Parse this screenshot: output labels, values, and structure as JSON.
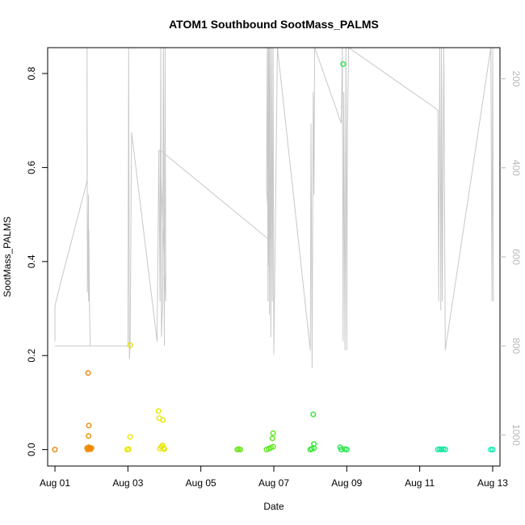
{
  "chart_data": {
    "type": "scatter",
    "title": "ATOM1 Southbound SootMass_PALMS",
    "xlabel": "Date",
    "ylabel": "SootMass_PALMS",
    "xlim": [
      -0.2,
      12.2
    ],
    "ylim": [
      -0.035,
      0.855
    ],
    "x_ticks": [
      {
        "value": 0,
        "label": "Aug 01"
      },
      {
        "value": 2,
        "label": "Aug 03"
      },
      {
        "value": 4,
        "label": "Aug 05"
      },
      {
        "value": 6,
        "label": "Aug 07"
      },
      {
        "value": 8,
        "label": "Aug 09"
      },
      {
        "value": 10,
        "label": "Aug 11"
      },
      {
        "value": 12,
        "label": "Aug 13"
      }
    ],
    "y_ticks": [
      0.0,
      0.2,
      0.4,
      0.6,
      0.8
    ],
    "y_tick_labels": [
      "0.0",
      "0.2",
      "0.4",
      "0.6",
      "0.8"
    ],
    "right_axis": {
      "reversed": true,
      "ylim": [
        1070,
        130
      ],
      "ticks": [
        200,
        400,
        600,
        800,
        1000
      ],
      "tick_labels": [
        "200",
        "400",
        "600",
        "800",
        "1000"
      ],
      "color": "#b8b8b8"
    },
    "colors": {
      "right_series": "#c8c8c8",
      "axis": "#000000"
    },
    "points": [
      {
        "x": 0.0,
        "y": 0.0,
        "color": "#e8860a"
      },
      {
        "x": 0.88,
        "y": 0.003,
        "color": "#f08a00"
      },
      {
        "x": 0.9,
        "y": 0.0,
        "color": "#f08a00"
      },
      {
        "x": 0.92,
        "y": 0.005,
        "color": "#f08a00"
      },
      {
        "x": 0.94,
        "y": 0.002,
        "color": "#f08a00"
      },
      {
        "x": 0.96,
        "y": 0.004,
        "color": "#f08a00"
      },
      {
        "x": 0.98,
        "y": 0.001,
        "color": "#f08a00"
      },
      {
        "x": 1.0,
        "y": 0.003,
        "color": "#f08a00"
      },
      {
        "x": 0.91,
        "y": 0.163,
        "color": "#e8860a"
      },
      {
        "x": 0.93,
        "y": 0.051,
        "color": "#e8900a"
      },
      {
        "x": 0.92,
        "y": 0.029,
        "color": "#e8900a"
      },
      {
        "x": 1.98,
        "y": 0.0,
        "color": "#e6e600"
      },
      {
        "x": 2.02,
        "y": 0.001,
        "color": "#e6e600"
      },
      {
        "x": 2.06,
        "y": 0.222,
        "color": "#e6e600"
      },
      {
        "x": 2.06,
        "y": 0.027,
        "color": "#e6e600"
      },
      {
        "x": 2.84,
        "y": 0.082,
        "color": "#e6e600"
      },
      {
        "x": 2.86,
        "y": 0.067,
        "color": "#e6e600"
      },
      {
        "x": 2.96,
        "y": 0.063,
        "color": "#e6e600"
      },
      {
        "x": 2.88,
        "y": 0.002,
        "color": "#e6e600"
      },
      {
        "x": 2.92,
        "y": 0.006,
        "color": "#e6e600"
      },
      {
        "x": 2.95,
        "y": 0.009,
        "color": "#e6e600"
      },
      {
        "x": 2.98,
        "y": 0.003,
        "color": "#e6e600"
      },
      {
        "x": 3.0,
        "y": 0.001,
        "color": "#e6e600"
      },
      {
        "x": 5.0,
        "y": 0.0,
        "color": "#6be61a"
      },
      {
        "x": 5.04,
        "y": 0.001,
        "color": "#6be61a"
      },
      {
        "x": 5.08,
        "y": 0.0,
        "color": "#6be61a"
      },
      {
        "x": 5.8,
        "y": 0.0,
        "color": "#5de81a"
      },
      {
        "x": 5.86,
        "y": 0.002,
        "color": "#5de81a"
      },
      {
        "x": 5.92,
        "y": 0.004,
        "color": "#5de81a"
      },
      {
        "x": 5.96,
        "y": 0.024,
        "color": "#5de81a"
      },
      {
        "x": 5.98,
        "y": 0.035,
        "color": "#5de81a"
      },
      {
        "x": 5.98,
        "y": 0.006,
        "color": "#5de81a"
      },
      {
        "x": 7.0,
        "y": 0.0,
        "color": "#2ee82e"
      },
      {
        "x": 7.04,
        "y": 0.002,
        "color": "#2ee82e"
      },
      {
        "x": 7.08,
        "y": 0.075,
        "color": "#2ee82e"
      },
      {
        "x": 7.1,
        "y": 0.012,
        "color": "#2ee82e"
      },
      {
        "x": 7.1,
        "y": 0.003,
        "color": "#2ee82e"
      },
      {
        "x": 7.82,
        "y": 0.005,
        "color": "#22e84a"
      },
      {
        "x": 7.85,
        "y": 0.0,
        "color": "#22e84a"
      },
      {
        "x": 7.9,
        "y": 0.82,
        "color": "#22e84a"
      },
      {
        "x": 7.95,
        "y": 0.001,
        "color": "#22e84a"
      },
      {
        "x": 8.0,
        "y": 0.0,
        "color": "#22e84a"
      },
      {
        "x": 10.5,
        "y": 0.0,
        "color": "#1ae8a0"
      },
      {
        "x": 10.55,
        "y": 0.001,
        "color": "#1ae8a0"
      },
      {
        "x": 10.6,
        "y": 0.0,
        "color": "#1ae8a0"
      },
      {
        "x": 10.65,
        "y": 0.001,
        "color": "#1ae8a0"
      },
      {
        "x": 10.7,
        "y": 0.0,
        "color": "#1ae8a0"
      },
      {
        "x": 11.95,
        "y": 0.0,
        "color": "#1ae8b4"
      },
      {
        "x": 12.0,
        "y": 0.0,
        "color": "#1ae8b4"
      }
    ],
    "right_series_points": [
      [
        0.0,
        790
      ],
      [
        0.0,
        710
      ],
      [
        0.15,
        660
      ],
      [
        0.88,
        430
      ],
      [
        0.88,
        130
      ],
      [
        0.89,
        680
      ],
      [
        0.9,
        600
      ],
      [
        0.92,
        460
      ],
      [
        0.92,
        700
      ],
      [
        0.93,
        540
      ],
      [
        0.95,
        730
      ],
      [
        0.97,
        800
      ],
      [
        0.0,
        800
      ],
      [
        0.97,
        800
      ],
      [
        2.0,
        800
      ],
      [
        2.02,
        130
      ],
      [
        2.04,
        830
      ],
      [
        2.06,
        800
      ],
      [
        2.1,
        320
      ],
      [
        2.8,
        790
      ],
      [
        2.85,
        360
      ],
      [
        2.88,
        700
      ],
      [
        2.9,
        130
      ],
      [
        2.92,
        780
      ],
      [
        2.95,
        700
      ],
      [
        2.97,
        130
      ],
      [
        3.0,
        800
      ],
      [
        3.02,
        130
      ],
      [
        3.04,
        700
      ],
      [
        2.88,
        360
      ],
      [
        5.85,
        560
      ],
      [
        5.85,
        130
      ],
      [
        5.87,
        620
      ],
      [
        5.87,
        130
      ],
      [
        5.9,
        560
      ],
      [
        5.8,
        450
      ],
      [
        5.82,
        130
      ],
      [
        5.84,
        700
      ],
      [
        5.86,
        130
      ],
      [
        5.88,
        730
      ],
      [
        5.9,
        130
      ],
      [
        5.92,
        780
      ],
      [
        5.94,
        130
      ],
      [
        5.96,
        700
      ],
      [
        5.98,
        130
      ],
      [
        6.0,
        820
      ],
      [
        6.1,
        130
      ],
      [
        7.0,
        810
      ],
      [
        7.02,
        300
      ],
      [
        7.05,
        850
      ],
      [
        7.08,
        230
      ],
      [
        7.1,
        460
      ],
      [
        7.12,
        130
      ],
      [
        7.85,
        300
      ],
      [
        7.88,
        130
      ],
      [
        7.9,
        790
      ],
      [
        7.92,
        230
      ],
      [
        7.95,
        810
      ],
      [
        7.98,
        130
      ],
      [
        8.0,
        810
      ],
      [
        8.02,
        310
      ],
      [
        8.05,
        130
      ],
      [
        10.5,
        270
      ],
      [
        10.52,
        700
      ],
      [
        10.55,
        130
      ],
      [
        10.58,
        720
      ],
      [
        10.6,
        130
      ],
      [
        10.62,
        700
      ],
      [
        10.66,
        130
      ],
      [
        10.7,
        810
      ],
      [
        11.95,
        130
      ],
      [
        11.97,
        500
      ],
      [
        11.98,
        700
      ],
      [
        12.0,
        130
      ],
      [
        12.02,
        700
      ]
    ]
  }
}
